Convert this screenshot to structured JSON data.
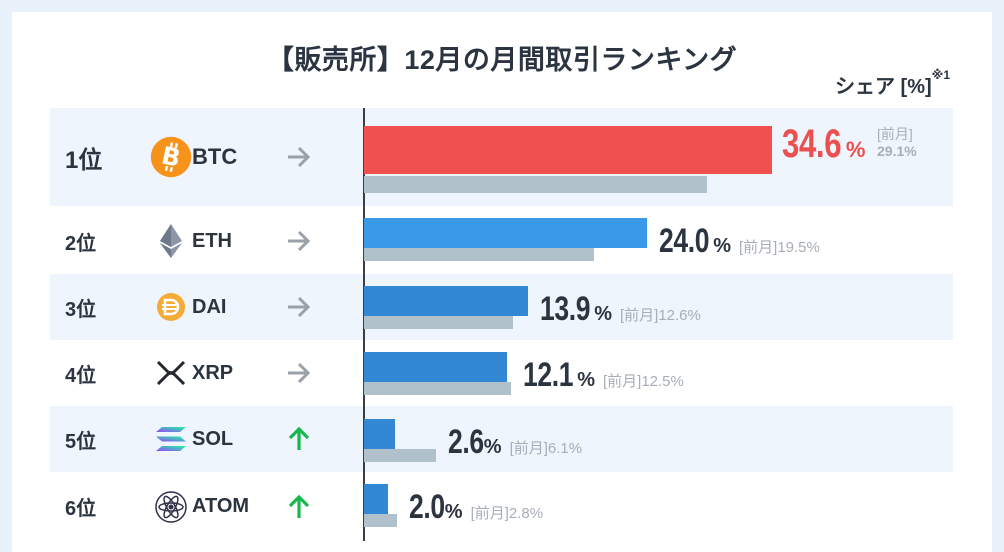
{
  "title": "【販売所】12月の月間取引ランキング",
  "unit_label": "シェア [%]",
  "unit_note": "※1",
  "prev_label": "[前月]",
  "percent_sign": "%",
  "colors": {
    "btc_bar": "#ef5050",
    "bar_blue": "#3a9ae8",
    "bar_blue_dark": "#3388d6",
    "prev_bar": "#b1c1cc",
    "trend_same": "#9aa1a8",
    "trend_up": "#16b84e"
  },
  "chart_data": {
    "type": "bar",
    "orientation": "horizontal",
    "categories": [
      "BTC",
      "ETH",
      "DAI",
      "XRP",
      "SOL",
      "ATOM"
    ],
    "series": [
      {
        "name": "12月",
        "values": [
          34.6,
          24.0,
          13.9,
          12.1,
          2.6,
          2.0
        ]
      },
      {
        "name": "前月",
        "values": [
          29.1,
          19.5,
          12.6,
          12.5,
          6.1,
          2.8
        ]
      }
    ],
    "xlim": [
      0,
      35.5
    ]
  },
  "rows": [
    {
      "rank": "1位",
      "symbol": "BTC",
      "icon": "bitcoin-icon",
      "trend": "flat",
      "value": "34.6",
      "prev": "29.1%"
    },
    {
      "rank": "2位",
      "symbol": "ETH",
      "icon": "ethereum-icon",
      "trend": "flat",
      "value": "24.0",
      "prev": "19.5%"
    },
    {
      "rank": "3位",
      "symbol": "DAI",
      "icon": "dai-icon",
      "trend": "flat",
      "value": "13.9",
      "prev": "12.6%"
    },
    {
      "rank": "4位",
      "symbol": "XRP",
      "icon": "xrp-icon",
      "trend": "flat",
      "value": "12.1",
      "prev": "12.5%"
    },
    {
      "rank": "5位",
      "symbol": "SOL",
      "icon": "solana-icon",
      "trend": "up",
      "value": "2.6",
      "prev": "6.1%"
    },
    {
      "rank": "6位",
      "symbol": "ATOM",
      "icon": "cosmos-icon",
      "trend": "up",
      "value": "2.0",
      "prev": "2.8%"
    }
  ]
}
